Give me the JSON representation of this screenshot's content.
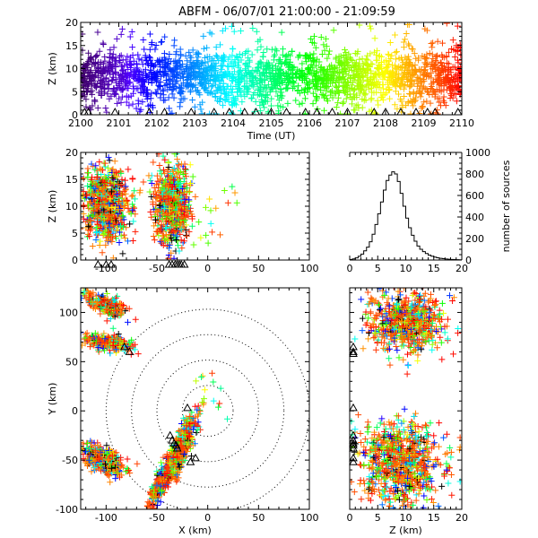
{
  "chart_data": [
    {
      "type": "scatter",
      "panel": "time-altitude",
      "title": "ABFM - 06/07/01 21:00:00 - 21:09:59",
      "xlabel": "Time (UT)",
      "ylabel": "Z (km)",
      "xlim": [
        2100,
        2110
      ],
      "ylim": [
        0,
        20
      ],
      "xticks": [
        "2100",
        "2101",
        "2102",
        "2103",
        "2104",
        "2105",
        "2106",
        "2107",
        "2108",
        "2109",
        "2110"
      ],
      "yticks": [
        "0",
        "5",
        "10",
        "15",
        "20"
      ],
      "color_by": "time",
      "altitude_band_km": [
        2,
        15
      ],
      "source_centroid_km": 8,
      "station_marks_x": [
        2100.1,
        2100.2,
        2100.9,
        2101.8,
        2102.2,
        2102.9,
        2103.5,
        2103.9,
        2104.3,
        2104.6,
        2105.0,
        2105.4,
        2105.9,
        2106.2,
        2106.6,
        2107.0,
        2107.7,
        2108.0,
        2108.4,
        2108.8,
        2109.1,
        2109.3,
        2109.9
      ]
    },
    {
      "type": "scatter",
      "panel": "east-west vs altitude",
      "xlabel": "",
      "ylabel": "Z (km)",
      "xlim": [
        -125,
        100
      ],
      "ylim": [
        0,
        20
      ],
      "xticks": [
        "-100",
        "-50",
        "0",
        "50",
        "100"
      ],
      "yticks": [
        "0",
        "5",
        "10",
        "15",
        "20"
      ],
      "clusters": [
        {
          "x_range": [
            -125,
            -75
          ],
          "z_range": [
            3,
            18
          ]
        },
        {
          "x_range": [
            -55,
            -15
          ],
          "z_range": [
            2,
            18
          ]
        }
      ],
      "station_marks_x": [
        -108,
        -100,
        -95,
        -38,
        -35,
        -32,
        -30,
        -28,
        -26,
        -23
      ]
    },
    {
      "type": "bar",
      "panel": "altitude histogram",
      "xlabel": "",
      "ylabel": "number of sources",
      "xlim": [
        0,
        20
      ],
      "ylim": [
        0,
        1000
      ],
      "xticks": [
        "0",
        "5",
        "10",
        "15",
        "20"
      ],
      "yticks": [
        "0",
        "200",
        "400",
        "600",
        "800",
        "1000"
      ],
      "bin_centers": [
        0.25,
        0.75,
        1.25,
        1.75,
        2.25,
        2.75,
        3.25,
        3.75,
        4.25,
        4.75,
        5.25,
        5.75,
        6.25,
        6.75,
        7.25,
        7.75,
        8.25,
        8.75,
        9.25,
        9.75,
        10.25,
        10.75,
        11.25,
        11.75,
        12.25,
        12.75,
        13.25,
        13.75,
        14.25,
        14.75,
        15.25,
        15.75,
        16.25,
        16.75,
        17.25,
        17.75,
        18.25,
        18.75,
        19.25,
        19.75
      ],
      "values": [
        5,
        10,
        20,
        35,
        55,
        85,
        120,
        170,
        240,
        330,
        430,
        540,
        650,
        740,
        790,
        820,
        800,
        730,
        620,
        500,
        390,
        300,
        230,
        175,
        130,
        100,
        78,
        60,
        46,
        35,
        27,
        21,
        16,
        12,
        9,
        7,
        5,
        4,
        3,
        2
      ]
    },
    {
      "type": "scatter",
      "panel": "plan view",
      "xlabel": "X (km)",
      "ylabel": "Y (km)",
      "xlim": [
        -125,
        100
      ],
      "ylim": [
        -100,
        125
      ],
      "xticks": [
        "-100",
        "-50",
        "0",
        "50",
        "100"
      ],
      "yticks": [
        "-100",
        "-50",
        "0",
        "50",
        "100"
      ],
      "range_rings_km": [
        25,
        50,
        75,
        100
      ],
      "clusters": [
        {
          "x_range": [
            -125,
            -75
          ],
          "y_range": [
            90,
            125
          ]
        },
        {
          "x_range": [
            -125,
            -70
          ],
          "y_range": [
            55,
            85
          ]
        },
        {
          "x_range": [
            -125,
            -80
          ],
          "y_range": [
            -75,
            -25
          ]
        },
        {
          "x_range": [
            -45,
            -10
          ],
          "y_range": [
            -75,
            -5
          ]
        },
        {
          "x_range": [
            -60,
            -35
          ],
          "y_range": [
            -100,
            -50
          ]
        }
      ],
      "stations": [
        [
          -82,
          65
        ],
        [
          -77,
          60
        ],
        [
          -20,
          3
        ],
        [
          -37,
          -25
        ],
        [
          -35,
          -30
        ],
        [
          -33,
          -33
        ],
        [
          -31,
          -35
        ],
        [
          -30,
          -38
        ],
        [
          -17,
          -52
        ],
        [
          -12,
          -48
        ]
      ]
    },
    {
      "type": "scatter",
      "panel": "altitude vs north-south",
      "xlabel": "Z (km)",
      "ylabel": "",
      "xlim": [
        0,
        20
      ],
      "ylim": [
        -100,
        125
      ],
      "xticks": [
        "0",
        "5",
        "10",
        "15",
        "20"
      ],
      "yticks": [
        "-100",
        "-50",
        "0",
        "50",
        "100"
      ],
      "clusters": [
        {
          "z_range": [
            2,
            18
          ],
          "y_range": [
            55,
            125
          ]
        },
        {
          "z_range": [
            1,
            17
          ],
          "y_range": [
            -100,
            -5
          ]
        }
      ],
      "station_marks_y": [
        65,
        60,
        58,
        3,
        -25,
        -30,
        -33,
        -35,
        -38,
        -48,
        -52
      ]
    }
  ]
}
